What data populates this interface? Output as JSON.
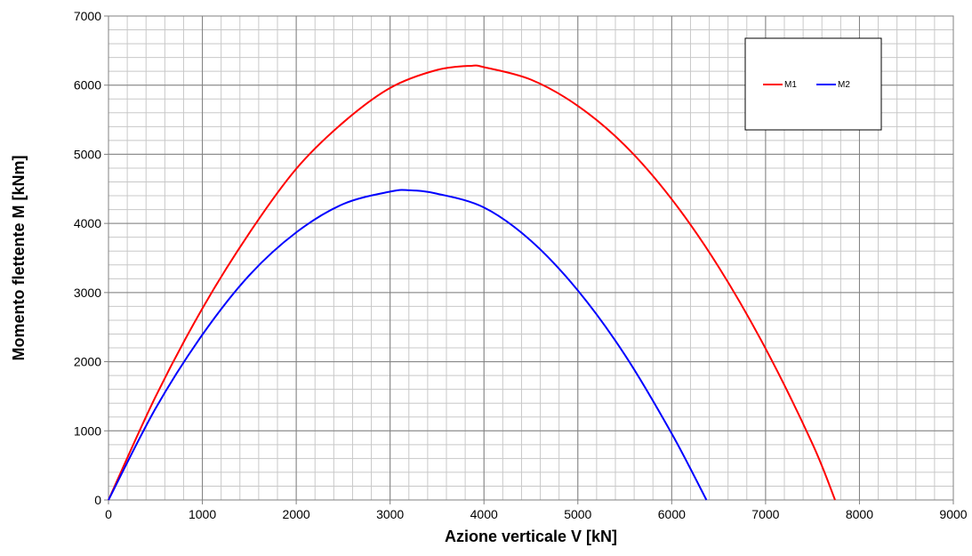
{
  "chart_data": {
    "type": "line",
    "title": "",
    "xlabel": "Azione verticale V [kN]",
    "ylabel": "Momento flettente M [kNm]",
    "xlim": [
      0,
      9000
    ],
    "ylim": [
      0,
      7000
    ],
    "x_major_ticks": [
      0,
      1000,
      2000,
      3000,
      4000,
      5000,
      6000,
      7000,
      8000,
      9000
    ],
    "y_major_ticks": [
      0,
      1000,
      2000,
      3000,
      4000,
      5000,
      6000,
      7000
    ],
    "x_minor_step": 200,
    "y_minor_step": 200,
    "grid": true,
    "legend_position": "top-right",
    "series": [
      {
        "name": "M1",
        "color": "#ff0000",
        "x": [
          0,
          500,
          1000,
          1500,
          2000,
          2500,
          3000,
          3500,
          3870,
          4000,
          4500,
          5000,
          5500,
          6000,
          6500,
          7000,
          7500,
          7740
        ],
        "y": [
          0,
          1490,
          2770,
          3860,
          4790,
          5460,
          5960,
          6220,
          6280,
          6260,
          6080,
          5700,
          5130,
          4350,
          3370,
          2190,
          810,
          0
        ]
      },
      {
        "name": "M2",
        "color": "#0000ff",
        "x": [
          0,
          500,
          1000,
          1500,
          2000,
          2500,
          3000,
          3200,
          3500,
          4000,
          4500,
          5000,
          5500,
          6000,
          6370
        ],
        "y": [
          0,
          1320,
          2390,
          3250,
          3870,
          4280,
          4460,
          4480,
          4430,
          4230,
          3750,
          3030,
          2100,
          960,
          0
        ]
      }
    ]
  }
}
